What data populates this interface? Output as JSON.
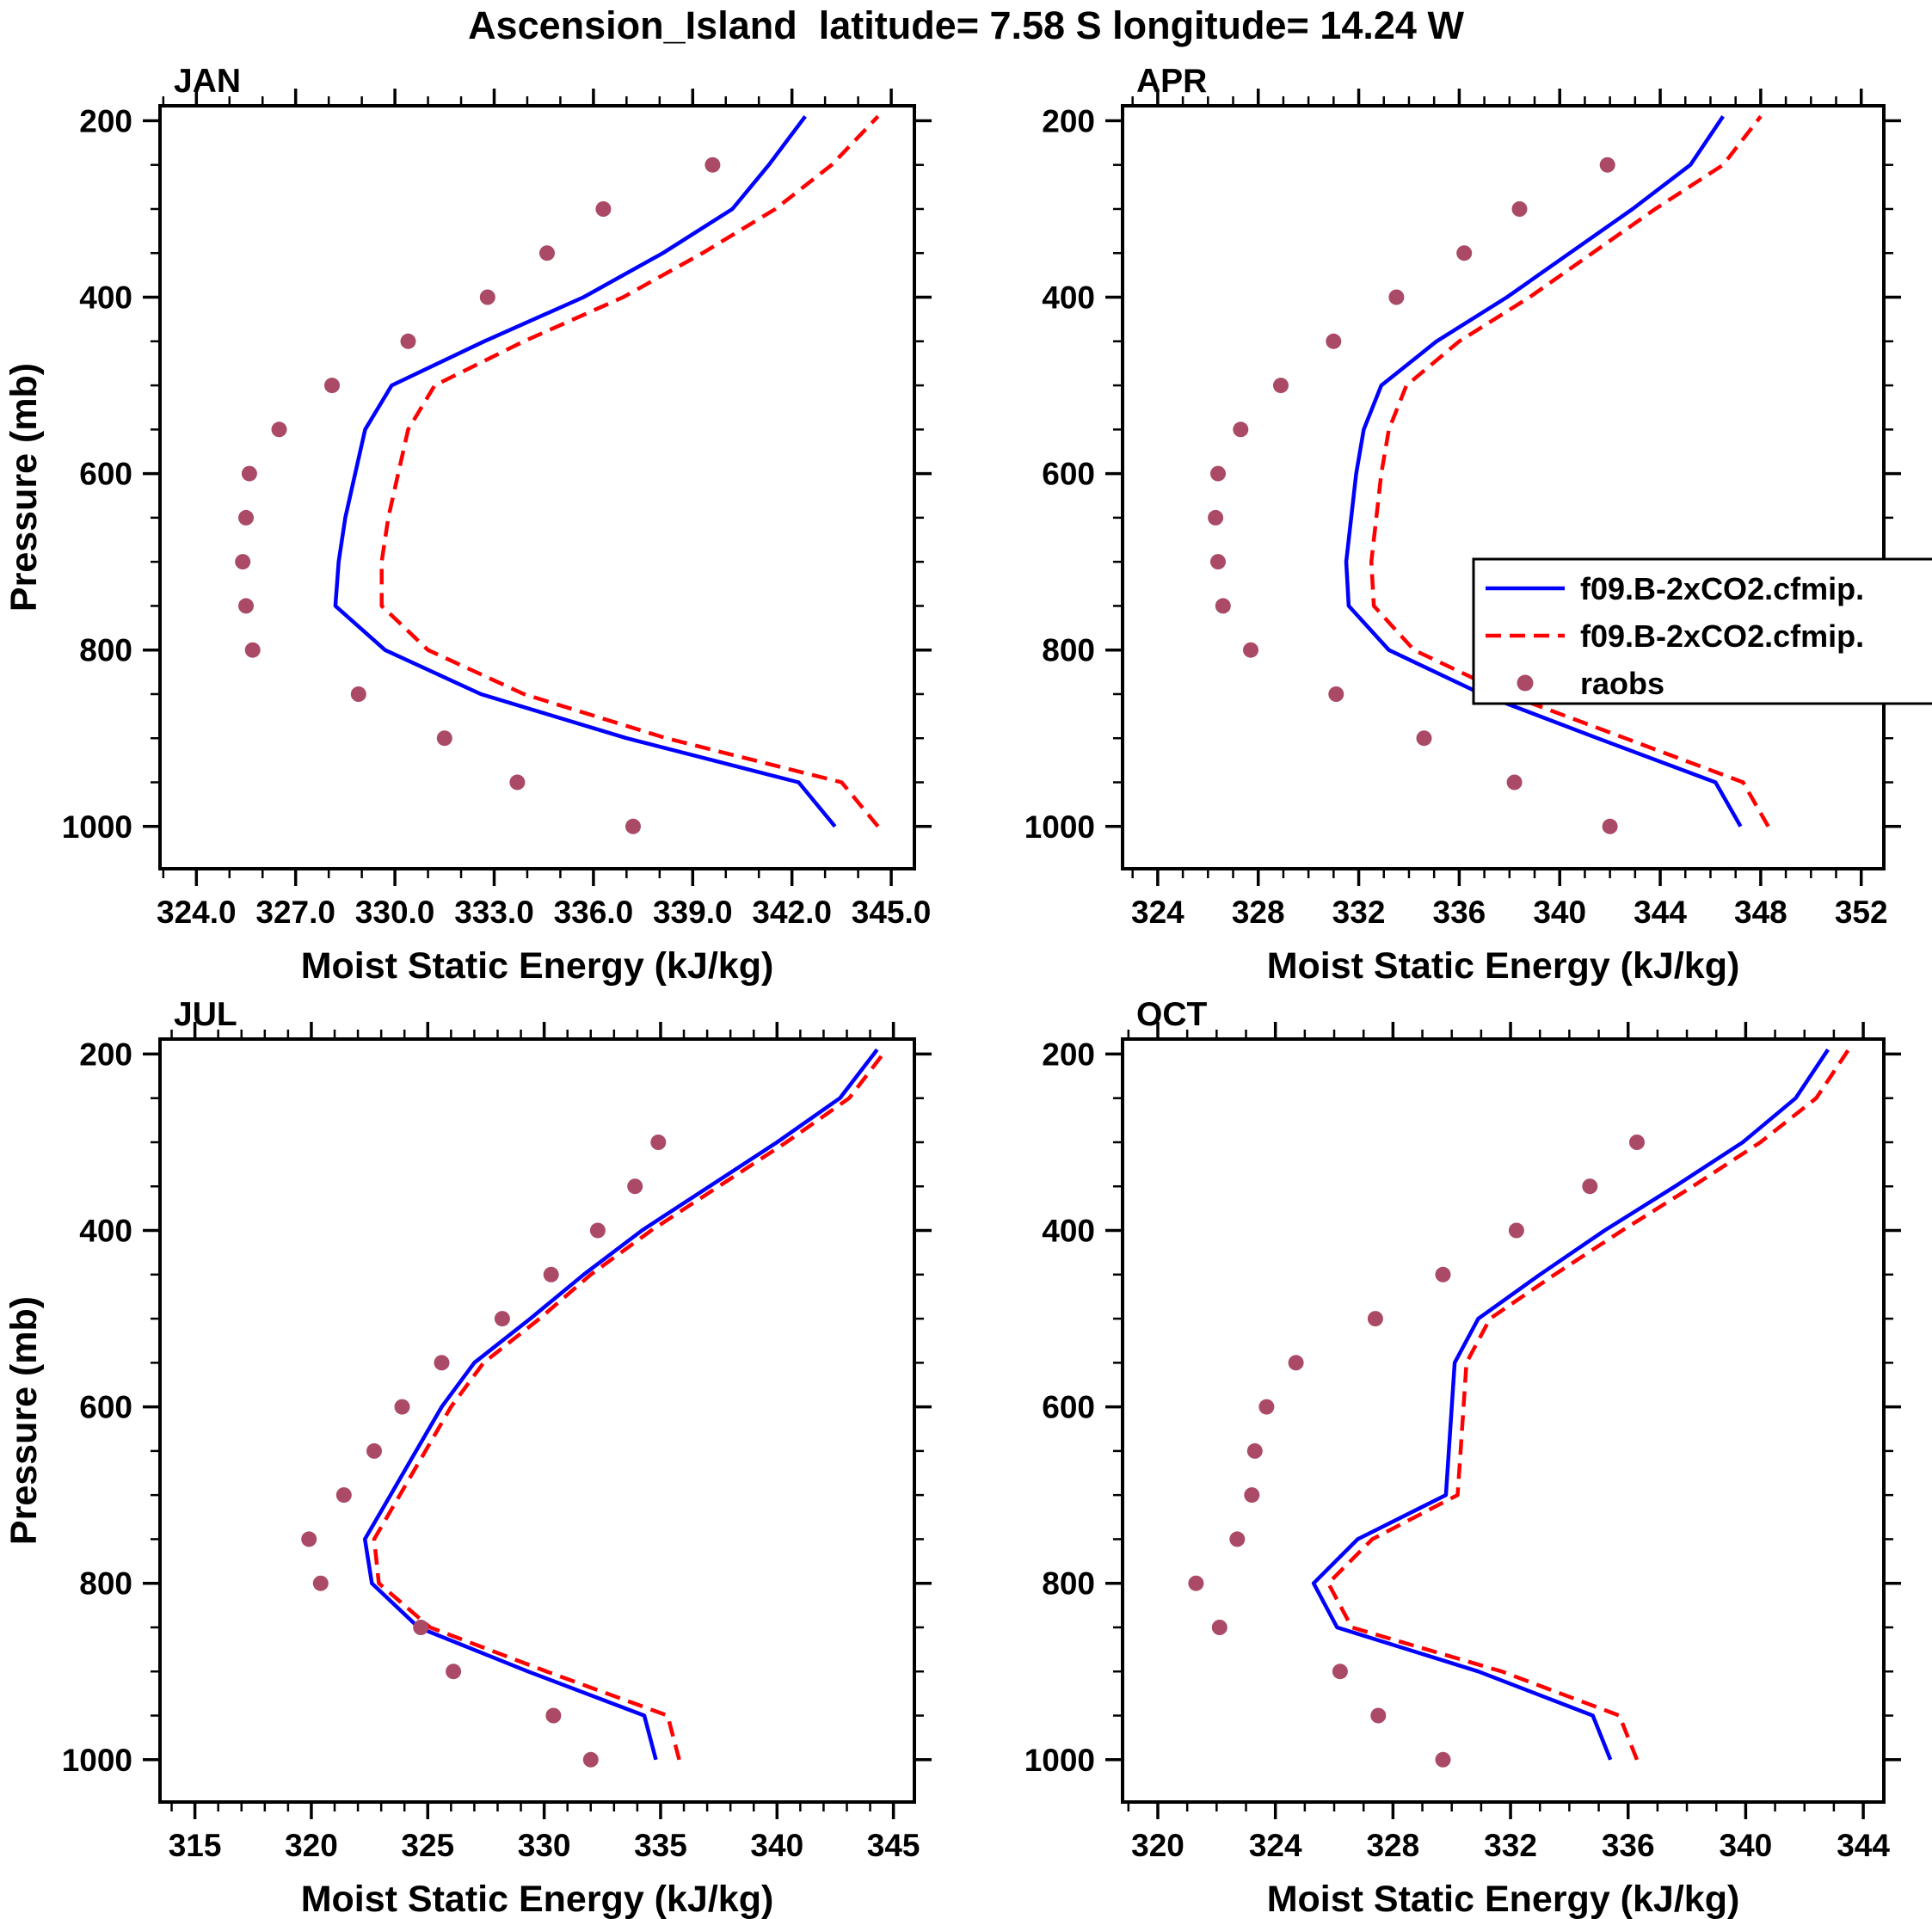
{
  "page_title": "Ascension_Island  latitude= 7.58 S longitude= 14.24 W",
  "colors": {
    "model1": "#0000ff",
    "model2": "#ff0000",
    "raobs": "#aa4a66",
    "axis": "#000000",
    "background": "#ffffff"
  },
  "legend": {
    "position": "inside-top-right-panel-apr",
    "entries": [
      {
        "label": "f09.B-2xCO2.cfmip.",
        "style": "solid",
        "color": "#0000ff"
      },
      {
        "label": "f09.B-2xCO2.cfmip.",
        "style": "dashed",
        "color": "#ff0000"
      },
      {
        "label": "raobs",
        "style": "dot",
        "color": "#aa4a66"
      }
    ]
  },
  "chart_data": [
    {
      "type": "line",
      "title": "JAN",
      "xlabel": "Moist Static Energy (kJ/kg)",
      "ylabel": "Pressure (mb)",
      "xlim": [
        322.9,
        345.7
      ],
      "ylim": [
        183,
        1048
      ],
      "y_axis_reversed": true,
      "xticks": [
        324,
        327,
        330,
        333,
        336,
        339,
        342,
        345
      ],
      "xtick_labels": [
        "324.0",
        "327.0",
        "330.0",
        "333.0",
        "336.0",
        "339.0",
        "342.0",
        "345.0"
      ],
      "yticks": [
        200,
        400,
        600,
        800,
        1000
      ],
      "series": [
        {
          "name": "f09.B-2xCO2.cfmip.",
          "type": "line",
          "style": "solid",
          "color": "#0000ff",
          "pressure": [
            1000,
            950,
            900,
            850,
            800,
            750,
            700,
            650,
            600,
            550,
            500,
            450,
            400,
            350,
            300,
            250,
            195
          ],
          "values": [
            343.3,
            342.2,
            337.0,
            332.6,
            329.7,
            328.2,
            328.3,
            328.5,
            328.8,
            329.1,
            329.9,
            332.7,
            335.7,
            338.1,
            340.2,
            341.3,
            342.4
          ]
        },
        {
          "name": "f09.B-2xCO2.cfmip.",
          "type": "line",
          "style": "dashed",
          "color": "#ff0000",
          "pressure": [
            1000,
            950,
            900,
            850,
            800,
            750,
            700,
            650,
            600,
            550,
            500,
            450,
            400,
            350,
            300,
            250,
            195
          ],
          "values": [
            344.6,
            343.5,
            338.2,
            333.9,
            331.0,
            329.6,
            329.6,
            329.8,
            330.1,
            330.4,
            331.2,
            333.9,
            336.9,
            339.3,
            341.5,
            343.2,
            344.6
          ]
        },
        {
          "name": "raobs",
          "type": "scatter",
          "color": "#aa4a66",
          "pressure": [
            1000,
            950,
            900,
            850,
            800,
            750,
            700,
            650,
            600,
            550,
            500,
            450,
            400,
            350,
            300,
            250
          ],
          "values": [
            337.2,
            333.7,
            331.5,
            328.9,
            325.7,
            325.5,
            325.4,
            325.5,
            325.6,
            326.5,
            328.1,
            330.4,
            332.8,
            334.6,
            336.3,
            339.6
          ]
        }
      ]
    },
    {
      "type": "line",
      "title": "APR",
      "xlabel": "Moist Static Energy (kJ/kg)",
      "ylabel": "Pressure (mb)",
      "xlim": [
        322.6,
        352.9
      ],
      "ylim": [
        183,
        1048
      ],
      "y_axis_reversed": true,
      "xticks": [
        324,
        328,
        332,
        336,
        340,
        344,
        348,
        352
      ],
      "xtick_labels": [
        "324",
        "328",
        "332",
        "336",
        "340",
        "344",
        "348",
        "352"
      ],
      "yticks": [
        200,
        400,
        600,
        800,
        1000
      ],
      "series": [
        {
          "name": "f09.B-2xCO2.cfmip.",
          "type": "line",
          "style": "solid",
          "color": "#0000ff",
          "pressure": [
            1000,
            950,
            900,
            850,
            800,
            750,
            700,
            650,
            600,
            550,
            500,
            450,
            400,
            350,
            300,
            250,
            195
          ],
          "values": [
            347.2,
            346.2,
            341.5,
            336.9,
            333.2,
            331.6,
            331.5,
            331.7,
            331.9,
            332.2,
            332.9,
            335.1,
            337.9,
            340.4,
            342.9,
            345.2,
            346.5
          ]
        },
        {
          "name": "f09.B-2xCO2.cfmip.",
          "type": "line",
          "style": "dashed",
          "color": "#ff0000",
          "pressure": [
            1000,
            950,
            900,
            850,
            800,
            750,
            700,
            650,
            600,
            550,
            500,
            450,
            400,
            350,
            300,
            250,
            195
          ],
          "values": [
            348.3,
            347.3,
            342.6,
            337.9,
            334.2,
            332.6,
            332.5,
            332.7,
            332.9,
            333.2,
            333.9,
            336.0,
            338.8,
            341.3,
            343.8,
            346.5,
            348.0
          ]
        },
        {
          "name": "raobs",
          "type": "scatter",
          "color": "#aa4a66",
          "pressure": [
            1000,
            950,
            900,
            850,
            800,
            750,
            700,
            650,
            600,
            550,
            500,
            450,
            400,
            350,
            300,
            250
          ],
          "values": [
            342.0,
            338.2,
            334.6,
            331.1,
            327.7,
            326.6,
            326.4,
            326.3,
            326.4,
            327.3,
            328.9,
            331.0,
            333.5,
            336.2,
            338.4,
            341.9
          ]
        }
      ]
    },
    {
      "type": "line",
      "title": "JUL",
      "xlabel": "Moist Static Energy (kJ/kg)",
      "ylabel": "Pressure (mb)",
      "xlim": [
        313.5,
        345.9
      ],
      "ylim": [
        183,
        1048
      ],
      "y_axis_reversed": true,
      "xticks": [
        315,
        320,
        325,
        330,
        335,
        340,
        345
      ],
      "xtick_labels": [
        "315",
        "320",
        "325",
        "330",
        "335",
        "340",
        "345"
      ],
      "yticks": [
        200,
        400,
        600,
        800,
        1000
      ],
      "series": [
        {
          "name": "f09.B-2xCO2.cfmip.",
          "type": "line",
          "style": "solid",
          "color": "#0000ff",
          "pressure": [
            1000,
            950,
            900,
            850,
            800,
            750,
            700,
            650,
            600,
            550,
            500,
            450,
            400,
            350,
            300,
            250,
            195
          ],
          "values": [
            334.8,
            334.3,
            329.3,
            324.6,
            322.6,
            322.3,
            323.4,
            324.5,
            325.6,
            327.0,
            329.4,
            331.7,
            334.2,
            337.1,
            340.0,
            342.7,
            344.3
          ]
        },
        {
          "name": "f09.B-2xCO2.cfmip.",
          "type": "line",
          "style": "dashed",
          "color": "#ff0000",
          "pressure": [
            1000,
            950,
            900,
            850,
            800,
            750,
            700,
            650,
            600,
            550,
            500,
            450,
            400,
            350,
            300,
            250,
            195
          ],
          "values": [
            335.8,
            335.3,
            330.1,
            325.1,
            322.9,
            322.7,
            323.8,
            324.9,
            326.0,
            327.4,
            329.8,
            332.0,
            334.6,
            337.5,
            340.4,
            343.1,
            344.7
          ]
        },
        {
          "name": "raobs",
          "type": "scatter",
          "color": "#aa4a66",
          "pressure": [
            1000,
            950,
            900,
            850,
            800,
            750,
            700,
            650,
            600,
            550,
            500,
            450,
            400,
            350,
            300
          ],
          "values": [
            332.0,
            330.4,
            326.1,
            324.7,
            320.4,
            319.9,
            321.4,
            322.7,
            323.9,
            325.6,
            328.2,
            330.3,
            332.3,
            333.9,
            334.9
          ]
        }
      ]
    },
    {
      "type": "line",
      "title": "OCT",
      "xlabel": "Moist Static Energy (kJ/kg)",
      "ylabel": "Pressure (mb)",
      "xlim": [
        318.8,
        344.7
      ],
      "ylim": [
        183,
        1048
      ],
      "y_axis_reversed": true,
      "xticks": [
        320,
        324,
        328,
        332,
        336,
        340,
        344
      ],
      "xtick_labels": [
        "320",
        "324",
        "328",
        "332",
        "336",
        "340",
        "344"
      ],
      "yticks": [
        200,
        400,
        600,
        800,
        1000
      ],
      "series": [
        {
          "name": "f09.B-2xCO2.cfmip.",
          "type": "line",
          "style": "solid",
          "color": "#0000ff",
          "pressure": [
            1000,
            950,
            900,
            850,
            800,
            750,
            700,
            650,
            600,
            550,
            500,
            450,
            400,
            350,
            300,
            250,
            195
          ],
          "values": [
            335.4,
            334.8,
            330.9,
            326.1,
            325.3,
            326.8,
            329.8,
            329.9,
            330.0,
            330.1,
            330.9,
            333.0,
            335.2,
            337.6,
            339.9,
            341.7,
            342.8
          ]
        },
        {
          "name": "f09.B-2xCO2.cfmip.",
          "type": "line",
          "style": "dashed",
          "color": "#ff0000",
          "pressure": [
            1000,
            950,
            900,
            850,
            800,
            750,
            700,
            650,
            600,
            550,
            500,
            450,
            400,
            350,
            300,
            250,
            195
          ],
          "values": [
            336.3,
            335.7,
            331.7,
            326.6,
            325.8,
            327.3,
            330.2,
            330.3,
            330.4,
            330.5,
            331.3,
            333.5,
            335.8,
            338.2,
            340.5,
            342.4,
            343.5
          ]
        },
        {
          "name": "raobs",
          "type": "scatter",
          "color": "#aa4a66",
          "pressure": [
            1000,
            950,
            900,
            850,
            800,
            750,
            700,
            650,
            600,
            550,
            500,
            450,
            400,
            350,
            300
          ],
          "values": [
            329.7,
            327.5,
            326.2,
            322.1,
            321.3,
            322.7,
            323.2,
            323.3,
            323.7,
            324.7,
            327.4,
            329.7,
            332.2,
            334.7,
            336.3
          ]
        }
      ]
    }
  ]
}
